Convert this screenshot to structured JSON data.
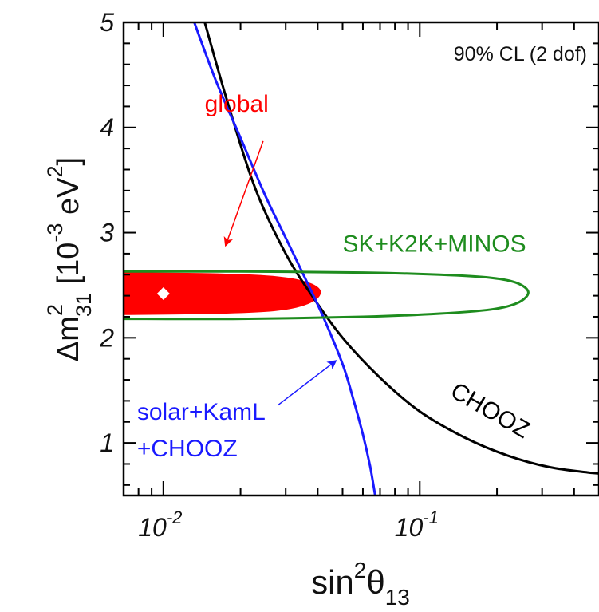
{
  "chart_data": {
    "type": "line",
    "x_scale": "log",
    "xlim": [
      0.007,
      0.5
    ],
    "ylim": [
      0.5,
      5
    ],
    "x_ticks": [
      {
        "value": 0.01,
        "base": "10",
        "exp": "-2"
      },
      {
        "value": 0.1,
        "base": "10",
        "exp": "-1"
      }
    ],
    "y_ticks": [
      1,
      2,
      3,
      4,
      5
    ],
    "xlabel": {
      "main": "sin",
      "sup": "2",
      "theta": "θ",
      "sub": "13"
    },
    "ylabel": {
      "delta": "Δm",
      "sup": "2",
      "sub": "31",
      "rest": " [10",
      "sup2": "-3",
      "unit": " eV",
      "sup3": "2",
      "close": "]"
    },
    "annotation_cl": "90% CL (2 dof)",
    "series": [
      {
        "name": "CHOOZ",
        "color": "#000000",
        "points": [
          [
            0.0145,
            5.0
          ],
          [
            0.018,
            4.2
          ],
          [
            0.023,
            3.4
          ],
          [
            0.03,
            2.8
          ],
          [
            0.038,
            2.4
          ],
          [
            0.05,
            2.0
          ],
          [
            0.07,
            1.62
          ],
          [
            0.1,
            1.3
          ],
          [
            0.15,
            1.05
          ],
          [
            0.22,
            0.88
          ],
          [
            0.32,
            0.77
          ],
          [
            0.45,
            0.72
          ],
          [
            0.5,
            0.71
          ]
        ]
      },
      {
        "name": "solar+KamL +CHOOZ",
        "color": "#1a1aff",
        "points": [
          [
            0.0132,
            5.0
          ],
          [
            0.016,
            4.45
          ],
          [
            0.02,
            3.9
          ],
          [
            0.025,
            3.35
          ],
          [
            0.03,
            2.95
          ],
          [
            0.036,
            2.55
          ],
          [
            0.042,
            2.2
          ],
          [
            0.05,
            1.75
          ],
          [
            0.055,
            1.42
          ],
          [
            0.06,
            1.08
          ],
          [
            0.064,
            0.78
          ],
          [
            0.067,
            0.5
          ]
        ]
      },
      {
        "name": "SK+K2K+MINOS",
        "color": "#1e8c1e",
        "points": [
          [
            0.007,
            2.63
          ],
          [
            0.02,
            2.63
          ],
          [
            0.06,
            2.62
          ],
          [
            0.12,
            2.6
          ],
          [
            0.19,
            2.57
          ],
          [
            0.24,
            2.52
          ],
          [
            0.265,
            2.43
          ],
          [
            0.24,
            2.33
          ],
          [
            0.19,
            2.27
          ],
          [
            0.12,
            2.23
          ],
          [
            0.06,
            2.2
          ],
          [
            0.02,
            2.18
          ],
          [
            0.007,
            2.18
          ]
        ]
      },
      {
        "name": "global",
        "color": "#ff0000",
        "fill": true,
        "points": [
          [
            0.007,
            2.62
          ],
          [
            0.015,
            2.61
          ],
          [
            0.025,
            2.59
          ],
          [
            0.032,
            2.56
          ],
          [
            0.038,
            2.51
          ],
          [
            0.041,
            2.44
          ],
          [
            0.039,
            2.36
          ],
          [
            0.033,
            2.29
          ],
          [
            0.025,
            2.25
          ],
          [
            0.015,
            2.23
          ],
          [
            0.007,
            2.22
          ]
        ]
      }
    ],
    "best_fit": {
      "x": 0.01,
      "y": 2.42,
      "color": "#ffffff"
    },
    "labels": [
      {
        "text": "global",
        "color": "#ff0000",
        "x": 0.0145,
        "y": 4.15
      },
      {
        "text": "SK+K2K+MINOS",
        "color": "#1e8c1e",
        "x": 0.05,
        "y": 2.82
      },
      {
        "text": "CHOOZ",
        "color": "#000000",
        "x": 0.13,
        "y": 1.45,
        "rotate": 30
      },
      {
        "text": "solar+KamL",
        "color": "#1a1aff",
        "x": 0.0079,
        "y": 1.22
      },
      {
        "text": "+CHOOZ",
        "color": "#1a1aff",
        "x": 0.0079,
        "y": 0.87
      }
    ],
    "arrows": [
      {
        "color": "#ff0000",
        "from": [
          0.0245,
          3.87
        ],
        "to": [
          0.0175,
          2.88
        ]
      },
      {
        "color": "#1a1aff",
        "from": [
          0.028,
          1.36
        ],
        "to": [
          0.047,
          1.78
        ]
      }
    ]
  }
}
